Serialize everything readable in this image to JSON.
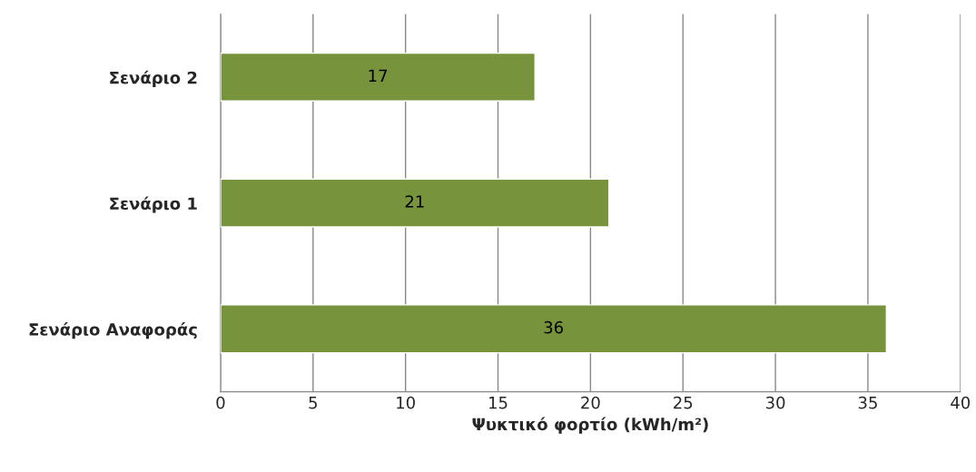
{
  "chart_data": {
    "type": "bar",
    "orientation": "horizontal",
    "xlabel": "Ψυκτικό φορτίο (kWh/m²)",
    "categories": [
      "Σενάριο 2",
      "Σενάριο 1",
      "Σενάριο Αναφοράς"
    ],
    "values": [
      17,
      21,
      36
    ],
    "color": "#77933c",
    "xlim": [
      0,
      40
    ],
    "xticks": [
      0,
      5,
      10,
      15,
      20,
      25,
      30,
      35,
      40
    ],
    "grid": "x",
    "data_labels": true
  }
}
